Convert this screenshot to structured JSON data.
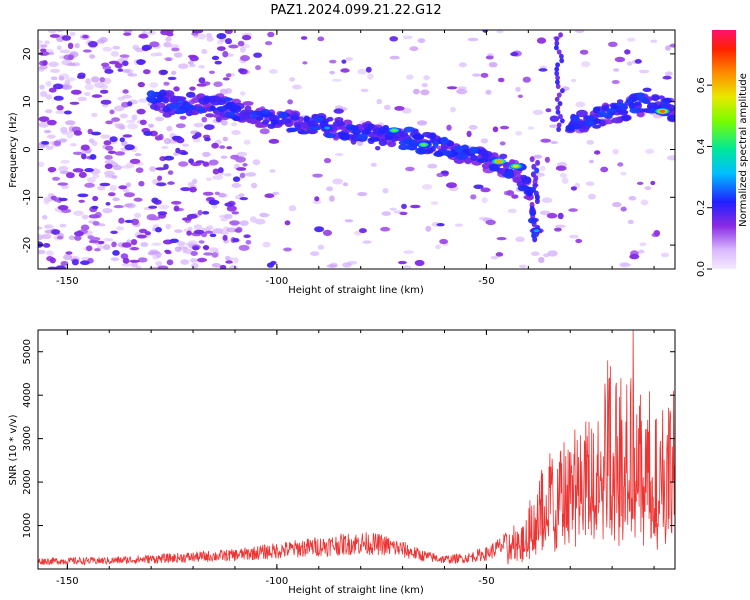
{
  "title": "PAZ1.2024.099.21.22.G12",
  "chart_data": [
    {
      "type": "heatmap",
      "xlabel": "Height of straight line (km)",
      "ylabel": "Frequency (Hz)",
      "xlim": [
        -157,
        -5
      ],
      "ylim": [
        -25,
        25
      ],
      "xticks": [
        -150,
        -100,
        -50
      ],
      "yticks": [
        -20,
        -10,
        0,
        10,
        20
      ],
      "colorbar": {
        "label": "Normalized spectral amplitude",
        "range": [
          0,
          0.78
        ],
        "ticks": [
          0.0,
          0.2,
          0.4,
          0.6
        ]
      },
      "ridges": [
        {
          "x": [
            -130,
            -120,
            -110,
            -100,
            -90,
            -80,
            -70,
            -60,
            -55,
            -50,
            -45,
            -42,
            -40,
            -39,
            -38
          ],
          "y": [
            10,
            9.5,
            8.5,
            6,
            5,
            3.5,
            2.5,
            0.5,
            -1,
            -2.5,
            -3.5,
            -5,
            -8,
            -13,
            -17
          ]
        },
        {
          "x": [
            -30,
            -25,
            -20,
            -15,
            -10,
            -5
          ],
          "y": [
            5,
            6.5,
            7.5,
            9,
            10,
            8
          ]
        }
      ],
      "peaks": [
        {
          "x": -123,
          "y": 10,
          "amp": 0.25
        },
        {
          "x": -88,
          "y": 4.5,
          "amp": 0.3
        },
        {
          "x": -72,
          "y": 4,
          "amp": 0.45
        },
        {
          "x": -65,
          "y": 1,
          "amp": 0.45
        },
        {
          "x": -47,
          "y": -2.5,
          "amp": 0.62
        },
        {
          "x": -43,
          "y": -3.5,
          "amp": 0.55
        },
        {
          "x": -38,
          "y": -17,
          "amp": 0.3
        },
        {
          "x": -8,
          "y": 8,
          "amp": 0.68
        }
      ]
    },
    {
      "type": "line",
      "xlabel": "Height of straight line (km)",
      "ylabel": "SNR (10 * v/v)",
      "xlim": [
        -157,
        -5
      ],
      "ylim": [
        0,
        5500
      ],
      "xticks": [
        -150,
        -100,
        -50
      ],
      "yticks": [
        1000,
        2000,
        3000,
        4000,
        5000
      ],
      "color": "#ee3333",
      "envelope": {
        "x": [
          -157,
          -140,
          -125,
          -110,
          -100,
          -90,
          -80,
          -75,
          -70,
          -65,
          -60,
          -55,
          -50,
          -45,
          -40,
          -35,
          -30,
          -25,
          -20,
          -15,
          -10,
          -5
        ],
        "y": [
          180,
          190,
          250,
          320,
          420,
          520,
          600,
          560,
          450,
          300,
          220,
          250,
          350,
          600,
          1100,
          1900,
          2300,
          2700,
          3500,
          3300,
          2700,
          2800
        ]
      }
    }
  ]
}
